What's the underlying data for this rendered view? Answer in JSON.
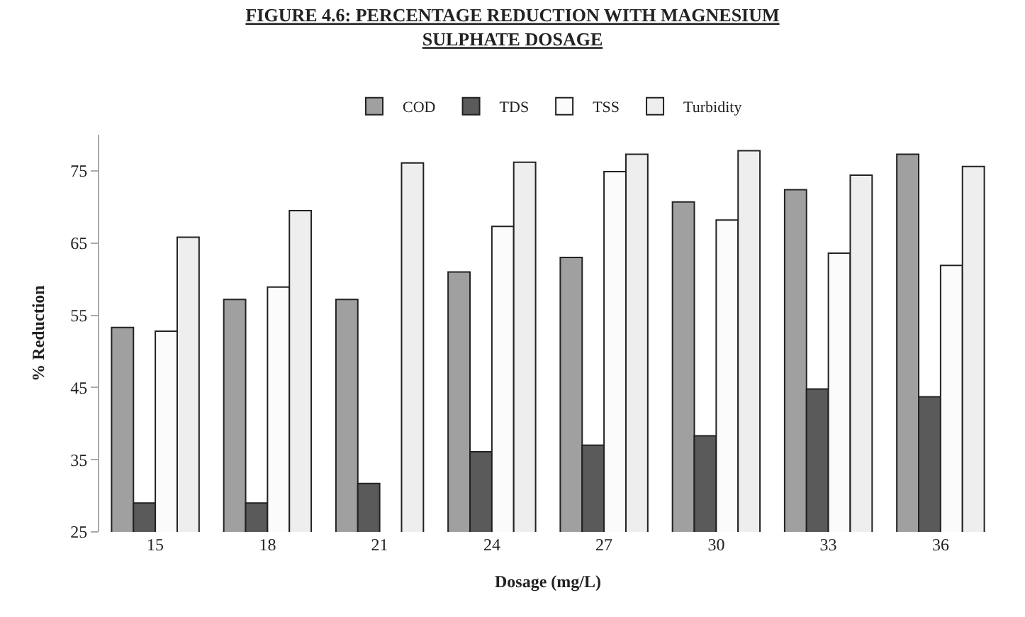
{
  "chart_data": {
    "type": "bar",
    "title": "FIGURE 4.6: PERCENTAGE REDUCTION WITH MAGNESIUM SULPHATE DOSAGE",
    "xlabel": "Dosage (mg/L)",
    "ylabel": "% Reduction",
    "categories": [
      "15",
      "18",
      "21",
      "24",
      "27",
      "30",
      "33",
      "36"
    ],
    "series": [
      {
        "name": "COD",
        "color": "#a0a0a0",
        "values": [
          53.3,
          57.2,
          57.2,
          61.0,
          63.0,
          70.7,
          72.4,
          77.3
        ]
      },
      {
        "name": "TDS",
        "color": "#5a5a5a",
        "values": [
          29.0,
          29.0,
          31.7,
          36.1,
          37.0,
          38.3,
          44.8,
          43.7
        ]
      },
      {
        "name": "TSS",
        "color": "#fbfbfb",
        "values": [
          52.8,
          58.9,
          null,
          67.3,
          74.9,
          68.2,
          63.6,
          61.9
        ]
      },
      {
        "name": "Turbidity",
        "color": "#eeeeee",
        "values": [
          65.8,
          69.5,
          76.1,
          76.2,
          77.3,
          77.8,
          74.4,
          75.6
        ]
      }
    ],
    "ylim": [
      25,
      80
    ],
    "yticks": [
      25,
      35,
      45,
      55,
      65,
      75
    ],
    "legend": "top"
  }
}
